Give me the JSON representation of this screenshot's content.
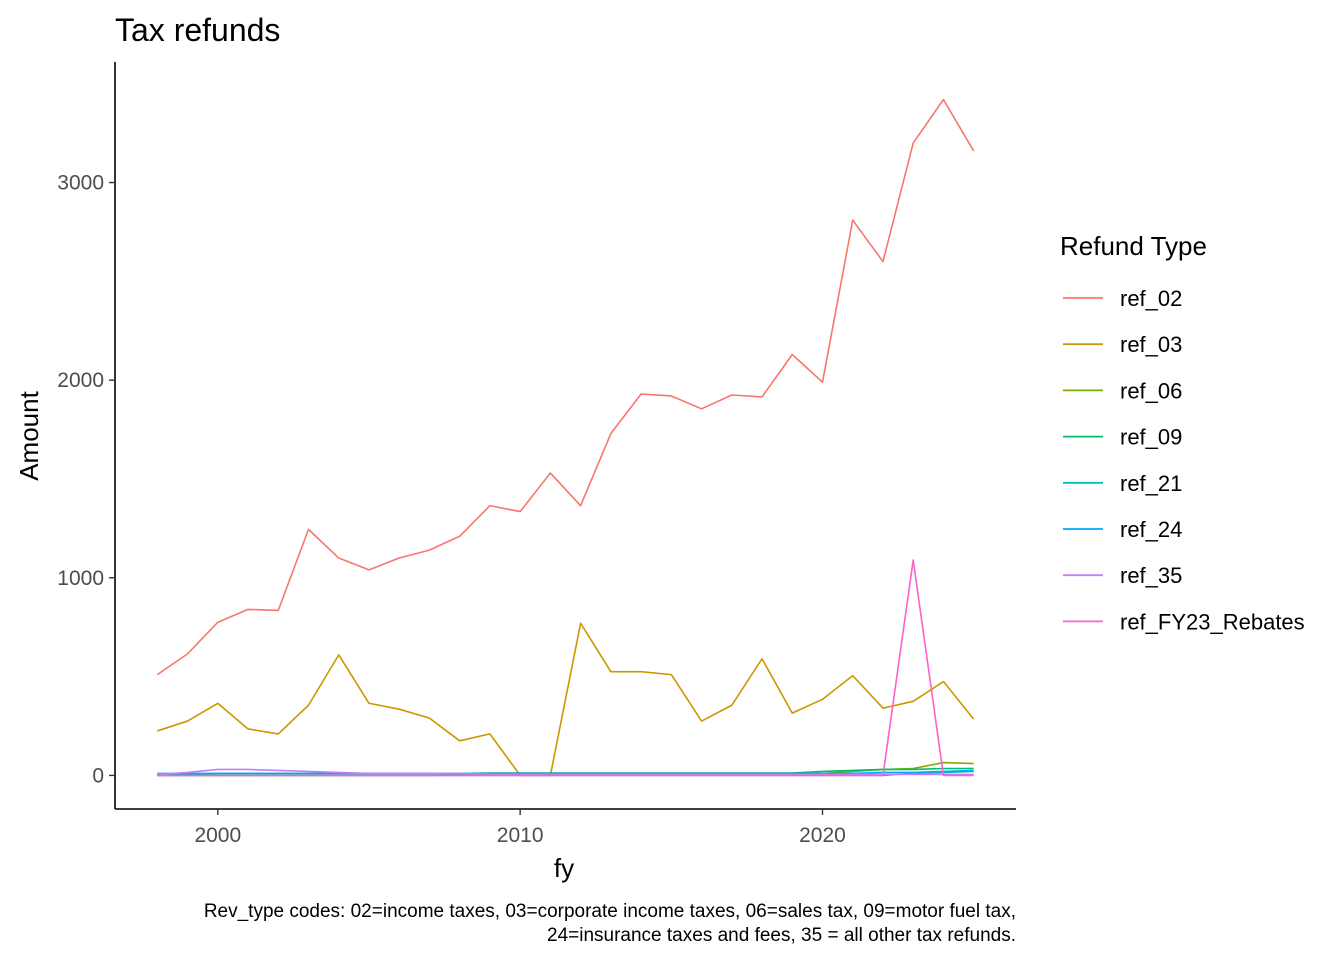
{
  "chart_data": {
    "type": "line",
    "title": "Tax refunds",
    "xlabel": "fy",
    "ylabel": "Amount",
    "xlim": [
      1996.6,
      2026.4
    ],
    "ylim": [
      -170,
      3610
    ],
    "xticks": [
      2000,
      2010,
      2020
    ],
    "yticks": [
      0,
      1000,
      2000,
      3000
    ],
    "grid": false,
    "legend_title": "Refund Type",
    "legend_position": "right",
    "caption_lines": [
      "Rev_type codes: 02=income taxes, 03=corporate income taxes, 06=sales tax, 09=motor fuel tax,",
      "24=insurance taxes and fees, 35 = all other tax refunds."
    ],
    "x": [
      1998,
      1999,
      2000,
      2001,
      2002,
      2003,
      2004,
      2005,
      2006,
      2007,
      2008,
      2009,
      2010,
      2011,
      2012,
      2013,
      2014,
      2015,
      2016,
      2017,
      2018,
      2019,
      2020,
      2021,
      2022,
      2023,
      2024,
      2025
    ],
    "series": [
      {
        "name": "ref_02",
        "color": "#F8766D",
        "values": [
          510,
          615,
          775,
          840,
          835,
          1245,
          1100,
          1040,
          1100,
          1140,
          1210,
          1365,
          1335,
          1530,
          1365,
          1730,
          1930,
          1920,
          1855,
          1925,
          1915,
          2130,
          1990,
          2810,
          2600,
          3200,
          3420,
          3160
        ]
      },
      {
        "name": "ref_03",
        "color": "#CD9600",
        "values": [
          225,
          275,
          365,
          235,
          210,
          355,
          610,
          365,
          335,
          290,
          175,
          210,
          0,
          0,
          770,
          525,
          525,
          510,
          275,
          355,
          590,
          315,
          385,
          505,
          340,
          375,
          475,
          285
        ]
      },
      {
        "name": "ref_06",
        "color": "#7CAE00",
        "values": [
          0,
          0,
          0,
          0,
          0,
          0,
          0,
          0,
          0,
          0,
          5,
          5,
          5,
          5,
          5,
          5,
          5,
          5,
          5,
          5,
          5,
          5,
          10,
          20,
          30,
          35,
          65,
          60
        ]
      },
      {
        "name": "ref_09",
        "color": "#00BE67",
        "values": [
          5,
          5,
          10,
          10,
          10,
          10,
          10,
          10,
          10,
          10,
          10,
          12,
          12,
          12,
          12,
          12,
          12,
          12,
          12,
          12,
          12,
          12,
          20,
          25,
          30,
          30,
          35,
          35
        ]
      },
      {
        "name": "ref_21",
        "color": "#00BFC4",
        "values": [
          0,
          0,
          0,
          0,
          0,
          0,
          0,
          0,
          0,
          0,
          0,
          0,
          0,
          0,
          0,
          0,
          0,
          0,
          0,
          0,
          0,
          0,
          0,
          0,
          0,
          10,
          15,
          20
        ]
      },
      {
        "name": "ref_24",
        "color": "#00A9FF",
        "values": [
          10,
          10,
          10,
          10,
          10,
          10,
          10,
          10,
          10,
          10,
          10,
          10,
          10,
          10,
          10,
          10,
          10,
          10,
          10,
          10,
          10,
          10,
          10,
          10,
          15,
          15,
          20,
          25
        ]
      },
      {
        "name": "ref_35",
        "color": "#C77CFF",
        "values": [
          5,
          15,
          30,
          30,
          25,
          20,
          15,
          10,
          10,
          10,
          10,
          5,
          5,
          5,
          5,
          5,
          5,
          5,
          5,
          5,
          5,
          5,
          5,
          5,
          5,
          5,
          5,
          5
        ]
      },
      {
        "name": "ref_FY23_Rebates",
        "color": "#FF61CC",
        "values": [
          0,
          0,
          0,
          0,
          0,
          0,
          0,
          0,
          0,
          0,
          0,
          0,
          0,
          0,
          0,
          0,
          0,
          0,
          0,
          0,
          0,
          0,
          0,
          0,
          0,
          1090,
          0,
          0
        ]
      }
    ]
  }
}
